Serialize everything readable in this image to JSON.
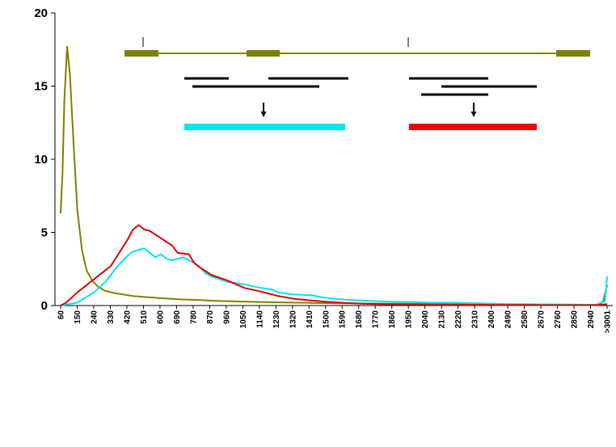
{
  "chart_data": {
    "type": "line",
    "title": "",
    "xlabel": "",
    "ylabel": "",
    "ylim": [
      0,
      20
    ],
    "yticks": [
      0,
      5,
      10,
      15,
      20
    ],
    "grid": false,
    "legend": "none",
    "x_tick_labels": [
      "60",
      "150",
      "240",
      "330",
      "420",
      "510",
      "600",
      "690",
      "780",
      "870",
      "960",
      "1050",
      "1140",
      "1230",
      "1320",
      "1410",
      "1500",
      "1590",
      "1680",
      "1770",
      "1860",
      "1950",
      "2040",
      "2130",
      "2220",
      "2310",
      "2400",
      "2490",
      "2580",
      "2670",
      "2760",
      "2850",
      "2940",
      ">3001"
    ],
    "series": [
      {
        "color": "#808000",
        "points": [
          [
            60,
            6.3
          ],
          [
            70,
            9
          ],
          [
            80,
            14
          ],
          [
            95,
            17.7
          ],
          [
            110,
            15.8
          ],
          [
            130,
            11
          ],
          [
            150,
            6.5
          ],
          [
            175,
            3.8
          ],
          [
            200,
            2.4
          ],
          [
            230,
            1.7
          ],
          [
            260,
            1.3
          ],
          [
            300,
            1.0
          ],
          [
            350,
            0.85
          ],
          [
            400,
            0.75
          ],
          [
            450,
            0.65
          ],
          [
            500,
            0.6
          ],
          [
            600,
            0.5
          ],
          [
            700,
            0.42
          ],
          [
            800,
            0.38
          ],
          [
            900,
            0.32
          ],
          [
            1000,
            0.28
          ],
          [
            1200,
            0.22
          ],
          [
            1400,
            0.18
          ],
          [
            1600,
            0.15
          ],
          [
            1800,
            0.13
          ],
          [
            2000,
            0.12
          ],
          [
            2200,
            0.1
          ],
          [
            2400,
            0.08
          ],
          [
            2600,
            0.07
          ],
          [
            2800,
            0.06
          ],
          [
            2960,
            0.05
          ],
          [
            2980,
            0.3
          ],
          [
            3001,
            1.4
          ]
        ]
      },
      {
        "color": "#00e5ee",
        "points": [
          [
            60,
            0
          ],
          [
            150,
            0.2
          ],
          [
            240,
            0.9
          ],
          [
            300,
            1.6
          ],
          [
            360,
            2.6
          ],
          [
            420,
            3.4
          ],
          [
            450,
            3.7
          ],
          [
            480,
            3.8
          ],
          [
            510,
            3.9
          ],
          [
            540,
            3.6
          ],
          [
            570,
            3.3
          ],
          [
            600,
            3.5
          ],
          [
            630,
            3.2
          ],
          [
            660,
            3.1
          ],
          [
            690,
            3.2
          ],
          [
            720,
            3.3
          ],
          [
            750,
            3.1
          ],
          [
            780,
            2.9
          ],
          [
            810,
            2.6
          ],
          [
            840,
            2.2
          ],
          [
            870,
            2.0
          ],
          [
            960,
            1.6
          ],
          [
            1050,
            1.45
          ],
          [
            1140,
            1.2
          ],
          [
            1200,
            1.1
          ],
          [
            1230,
            0.9
          ],
          [
            1320,
            0.75
          ],
          [
            1410,
            0.7
          ],
          [
            1500,
            0.5
          ],
          [
            1590,
            0.4
          ],
          [
            1680,
            0.35
          ],
          [
            1770,
            0.3
          ],
          [
            1860,
            0.25
          ],
          [
            1950,
            0.25
          ],
          [
            2040,
            0.2
          ],
          [
            2130,
            0.2
          ],
          [
            2220,
            0.18
          ],
          [
            2310,
            0.15
          ],
          [
            2400,
            0.12
          ],
          [
            2490,
            0.1
          ],
          [
            2580,
            0.1
          ],
          [
            2670,
            0.08
          ],
          [
            2760,
            0.07
          ],
          [
            2850,
            0.06
          ],
          [
            2940,
            0.05
          ],
          [
            2990,
            0.3
          ],
          [
            3001,
            2.0
          ]
        ]
      },
      {
        "color": "#dd0000",
        "points": [
          [
            60,
            0
          ],
          [
            90,
            0.2
          ],
          [
            150,
            0.9
          ],
          [
            240,
            1.8
          ],
          [
            330,
            2.7
          ],
          [
            360,
            3.3
          ],
          [
            420,
            4.5
          ],
          [
            450,
            5.2
          ],
          [
            480,
            5.5
          ],
          [
            510,
            5.2
          ],
          [
            540,
            5.1
          ],
          [
            600,
            4.6
          ],
          [
            660,
            4.1
          ],
          [
            690,
            3.6
          ],
          [
            750,
            3.5
          ],
          [
            780,
            2.9
          ],
          [
            810,
            2.6
          ],
          [
            870,
            2.1
          ],
          [
            960,
            1.7
          ],
          [
            1050,
            1.2
          ],
          [
            1140,
            0.95
          ],
          [
            1230,
            0.65
          ],
          [
            1320,
            0.45
          ],
          [
            1410,
            0.35
          ],
          [
            1500,
            0.25
          ],
          [
            1590,
            0.18
          ],
          [
            1680,
            0.12
          ],
          [
            1770,
            0.1
          ],
          [
            1860,
            0.08
          ],
          [
            1950,
            0.07
          ],
          [
            2040,
            0.06
          ],
          [
            2130,
            0.05
          ],
          [
            2220,
            0.05
          ],
          [
            2310,
            0.05
          ],
          [
            2400,
            0.04
          ],
          [
            2490,
            0.04
          ],
          [
            2580,
            0.04
          ],
          [
            2670,
            0.03
          ],
          [
            2760,
            0.03
          ],
          [
            2850,
            0.03
          ],
          [
            2940,
            0.03
          ],
          [
            3001,
            0.1
          ]
        ]
      }
    ],
    "annotation": {
      "gene_line_color": "#808000",
      "exon_color": "#808000",
      "read_color": "#000000",
      "cyan_bar_color": "#00e5ee",
      "red_bar_color": "#ff0000"
    }
  }
}
